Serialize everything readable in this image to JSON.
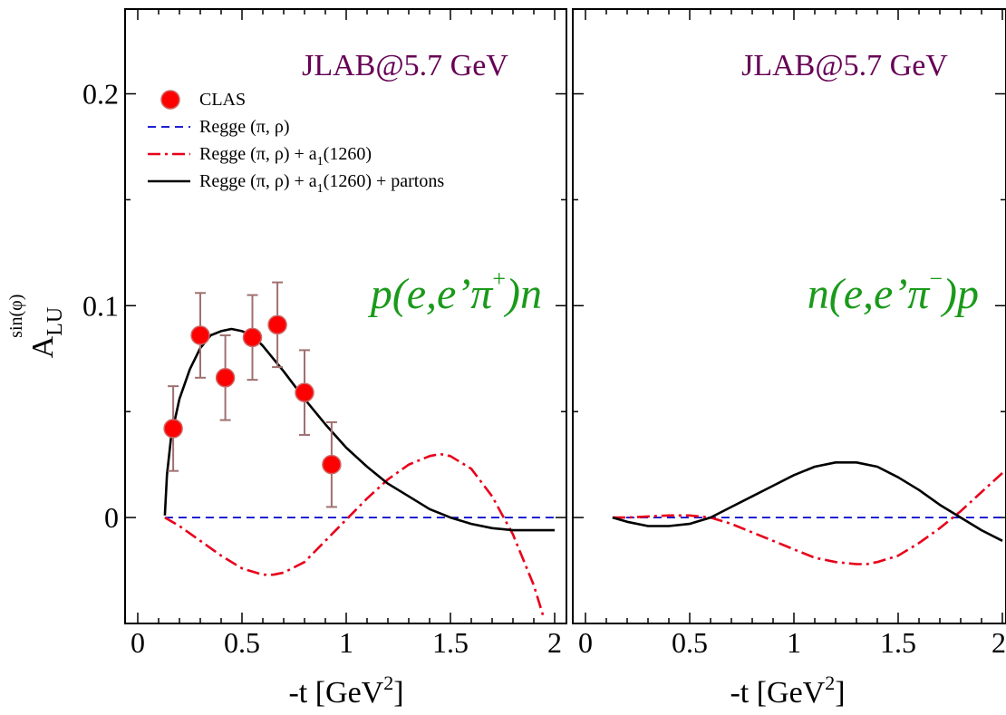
{
  "chart_data": [
    {
      "type": "scatter",
      "panel_title": "JLAB@5.7 GeV",
      "reaction": {
        "a": "p(e,e’π",
        "sup": "+",
        "b": ")n"
      },
      "xlabel": {
        "main": "-t [GeV",
        "sup": "2",
        "tail": "]"
      },
      "ylabel": {
        "main": "A",
        "sub": "LU",
        "sup": "sin(φ)"
      },
      "xlim": [
        0,
        2
      ],
      "ylim": [
        -0.05,
        0.24
      ],
      "xticks": [
        0,
        0.5,
        1,
        1.5,
        2
      ],
      "xtick_labels": [
        "0",
        "0.5",
        "1",
        "1.5",
        "2"
      ],
      "yticks": [
        0,
        0.1,
        0.2
      ],
      "ytick_labels": [
        "0",
        "0.1",
        "0.2"
      ],
      "legend_position": "top-left",
      "legend": [
        {
          "key": "clas",
          "label": "CLAS",
          "sub": "",
          "tail": ""
        },
        {
          "key": "regge",
          "label": "Regge (π, ρ)",
          "sub": "",
          "tail": ""
        },
        {
          "key": "regge_a1",
          "label": "Regge (π, ρ) + a",
          "sub": "1",
          "tail": "(1260)"
        },
        {
          "key": "regge_a1_partons",
          "label": "Regge (π, ρ) + a",
          "sub": "1",
          "tail": "(1260) + partons"
        }
      ],
      "points": {
        "name": "CLAS",
        "x": [
          0.17,
          0.3,
          0.42,
          0.55,
          0.67,
          0.8,
          0.93
        ],
        "y": [
          0.042,
          0.086,
          0.066,
          0.085,
          0.091,
          0.059,
          0.025
        ],
        "err": [
          0.02,
          0.02,
          0.02,
          0.02,
          0.02,
          0.02,
          0.02
        ]
      },
      "series": [
        {
          "key": "regge",
          "x": [
            0.13,
            2.0
          ],
          "y": [
            0,
            0
          ]
        },
        {
          "key": "regge_a1",
          "x": [
            0.13,
            0.2,
            0.3,
            0.4,
            0.5,
            0.6,
            0.65,
            0.7,
            0.8,
            0.9,
            1.0,
            1.1,
            1.2,
            1.3,
            1.4,
            1.45,
            1.5,
            1.6,
            1.7,
            1.8,
            1.9,
            1.95
          ],
          "y": [
            0,
            -0.004,
            -0.011,
            -0.018,
            -0.024,
            -0.027,
            -0.027,
            -0.026,
            -0.021,
            -0.011,
            -0.001,
            0.009,
            0.018,
            0.025,
            0.029,
            0.03,
            0.029,
            0.023,
            0.01,
            -0.008,
            -0.032,
            -0.048
          ]
        },
        {
          "key": "regge_a1_partons",
          "x": [
            0.13,
            0.14,
            0.16,
            0.2,
            0.25,
            0.3,
            0.35,
            0.4,
            0.45,
            0.5,
            0.55,
            0.6,
            0.7,
            0.8,
            0.9,
            1.0,
            1.1,
            1.2,
            1.3,
            1.4,
            1.5,
            1.6,
            1.7,
            1.8,
            1.9,
            2.0
          ],
          "y": [
            0.001,
            0.02,
            0.038,
            0.056,
            0.07,
            0.08,
            0.086,
            0.088,
            0.089,
            0.088,
            0.086,
            0.081,
            0.069,
            0.056,
            0.044,
            0.033,
            0.024,
            0.016,
            0.01,
            0.004,
            0.0,
            -0.003,
            -0.005,
            -0.006,
            -0.006,
            -0.006
          ]
        }
      ]
    },
    {
      "type": "line",
      "panel_title": "JLAB@5.7 GeV",
      "reaction": {
        "a": "n(e,e’π",
        "sup": "−",
        "b": ")p"
      },
      "xlabel": {
        "main": "-t [GeV",
        "sup": "2",
        "tail": "]"
      },
      "xlim": [
        0,
        2
      ],
      "ylim": [
        -0.05,
        0.24
      ],
      "xticks": [
        0,
        0.5,
        1,
        1.5,
        2
      ],
      "xtick_labels": [
        "0",
        "0.5",
        "1",
        "1.5",
        "2"
      ],
      "yticks": [
        0,
        0.1,
        0.2
      ],
      "series": [
        {
          "key": "regge",
          "x": [
            0.13,
            2.0
          ],
          "y": [
            0,
            0
          ]
        },
        {
          "key": "regge_a1",
          "x": [
            0.13,
            0.2,
            0.3,
            0.4,
            0.5,
            0.6,
            0.7,
            0.8,
            0.9,
            1.0,
            1.1,
            1.2,
            1.3,
            1.35,
            1.4,
            1.5,
            1.6,
            1.7,
            1.8,
            1.9,
            2.0
          ],
          "y": [
            0,
            0,
            0.0005,
            0.001,
            0.001,
            0.0,
            -0.003,
            -0.007,
            -0.011,
            -0.015,
            -0.019,
            -0.021,
            -0.022,
            -0.022,
            -0.021,
            -0.018,
            -0.012,
            -0.005,
            0.003,
            0.012,
            0.021
          ]
        },
        {
          "key": "regge_a1_partons",
          "x": [
            0.13,
            0.2,
            0.3,
            0.4,
            0.5,
            0.6,
            0.7,
            0.8,
            0.9,
            1.0,
            1.1,
            1.2,
            1.25,
            1.3,
            1.4,
            1.5,
            1.6,
            1.7,
            1.8,
            1.9,
            2.0
          ],
          "y": [
            0,
            -0.002,
            -0.004,
            -0.004,
            -0.003,
            0.0,
            0.005,
            0.01,
            0.015,
            0.02,
            0.024,
            0.026,
            0.026,
            0.026,
            0.024,
            0.019,
            0.013,
            0.006,
            0.0,
            -0.006,
            -0.011
          ]
        }
      ]
    }
  ],
  "colors": {
    "title": "#660055",
    "reaction": "#1a9a1a",
    "points_fill": "#ff0000",
    "points_stroke": "#cc6666",
    "error_bars": "#a07070",
    "regge": "#0000cc",
    "regge_a1": "#e8001a",
    "regge_a1_partons": "#000000",
    "axes": "#000000"
  }
}
